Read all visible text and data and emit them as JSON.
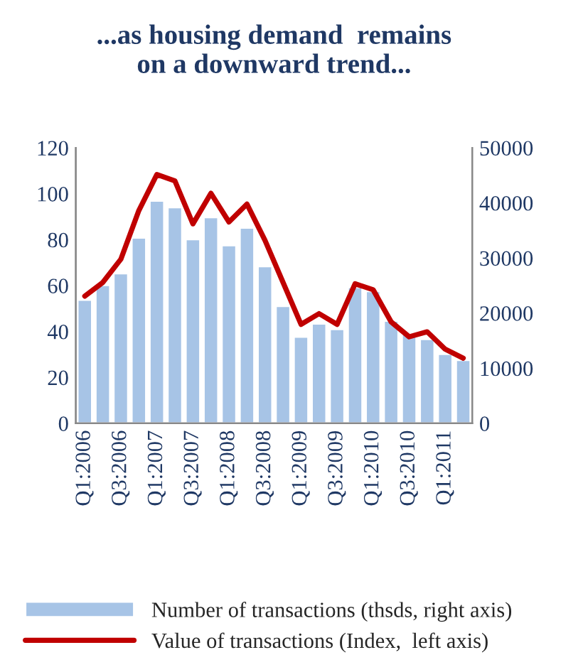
{
  "chart_data": {
    "type": "bar",
    "title": "...as housing demand  remains\non a downward trend...",
    "categories": [
      "Q1:2006",
      null,
      "Q3:2006",
      null,
      "Q1:2007",
      null,
      "Q3:2007",
      null,
      "Q1:2008",
      null,
      "Q3:2008",
      null,
      "Q1:2009",
      null,
      "Q3:2009",
      null,
      "Q1:2010",
      null,
      "Q3:2010",
      null,
      "Q1:2011",
      null
    ],
    "series": [
      {
        "name": "Number of transactions (thsds, right axis)",
        "axis": "y2",
        "color": "#a7c4e6",
        "values": [
          22400,
          25100,
          27200,
          33700,
          40400,
          39200,
          33400,
          37400,
          32300,
          35500,
          28500,
          21300,
          15700,
          18100,
          17100,
          24700,
          24000,
          18600,
          16200,
          15300,
          12600,
          11500
        ]
      },
      {
        "name": "Value of transactions (Index,  left axis)",
        "type": "line",
        "color": "#c00000",
        "values": [
          55.4,
          61.4,
          71.5,
          92.7,
          108.4,
          105.6,
          86.9,
          100.2,
          87.7,
          95.5,
          79.7,
          61.4,
          43.1,
          47.8,
          43.1,
          60.8,
          58.2,
          44.2,
          37.7,
          39.9,
          32.3,
          28.4
        ]
      }
    ],
    "ylim": [
      0,
      120
    ],
    "yticks": [
      0,
      20,
      40,
      60,
      80,
      100,
      120
    ],
    "y2lim": [
      0,
      50000
    ],
    "y2ticks": [
      0,
      10000,
      20000,
      30000,
      40000,
      50000
    ],
    "grid": false,
    "legend": "bottom"
  }
}
